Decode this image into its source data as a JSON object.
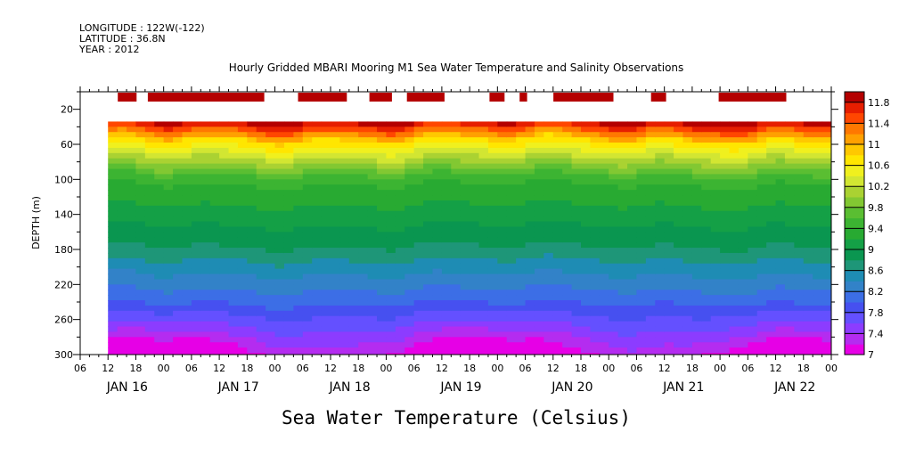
{
  "header": {
    "longitude": "LONGITUDE : 122W(-122)",
    "latitude": "LATITUDE : 36.8N",
    "year": "YEAR : 2012"
  },
  "chart_data": {
    "type": "heatmap",
    "title": "Hourly Gridded MBARI Mooring M1 Sea Water Temperature and Salinity Observations",
    "xlabel": "",
    "ylabel": "DEPTH (m)",
    "colorbar_title": "Sea Water Temperature (Celsius)",
    "ylim": [
      300,
      0
    ],
    "yticks": [
      20,
      60,
      100,
      140,
      180,
      220,
      260,
      300
    ],
    "xhour_labels": [
      "06",
      "12",
      "18",
      "00",
      "06",
      "12",
      "18",
      "00",
      "06",
      "12",
      "18",
      "00",
      "06",
      "12",
      "18",
      "00",
      "06",
      "12",
      "18",
      "00",
      "06",
      "12",
      "18",
      "00",
      "06",
      "12",
      "18",
      "00"
    ],
    "xday_labels": [
      "JAN 16",
      "JAN 17",
      "JAN 18",
      "JAN 19",
      "JAN 20",
      "JAN 21",
      "JAN 22"
    ],
    "x_range_hours": [
      0,
      162
    ],
    "data_start_hour": 6,
    "data_top_depth": 34,
    "colorbar": {
      "levels": [
        7,
        7.2,
        7.4,
        7.6,
        7.8,
        8.0,
        8.2,
        8.4,
        8.6,
        8.8,
        9.0,
        9.2,
        9.4,
        9.6,
        9.8,
        10.0,
        10.2,
        10.4,
        10.6,
        10.8,
        11.0,
        11.2,
        11.4,
        11.6,
        11.8,
        12.0
      ],
      "labels": [
        "11.8",
        "11.4",
        "11",
        "10.6",
        "10.2",
        "9.8",
        "9.4",
        "9",
        "8.6",
        "8.2",
        "7.8",
        "7.4",
        "7"
      ],
      "colors": [
        "#e600e6",
        "#b42cf0",
        "#8c3cff",
        "#6450ff",
        "#4650f0",
        "#3c6ee6",
        "#3282c8",
        "#1e8cb4",
        "#1e9678",
        "#0a9650",
        "#14a046",
        "#28aa32",
        "#3cb432",
        "#5abe32",
        "#82c832",
        "#aad232",
        "#d2e632",
        "#f0f01e",
        "#ffe600",
        "#ffc800",
        "#ffa000",
        "#ff7800",
        "#ff4600",
        "#e61e00",
        "#b40000"
      ]
    },
    "surface_segments_hours": [
      [
        10,
        15
      ],
      [
        18,
        49
      ],
      [
        58,
        71
      ],
      [
        77,
        83
      ],
      [
        87,
        97
      ],
      [
        109,
        113
      ],
      [
        117,
        119
      ],
      [
        126,
        142
      ],
      [
        152,
        156
      ],
      [
        170,
        188
      ]
    ],
    "surface_temp": 12
  }
}
